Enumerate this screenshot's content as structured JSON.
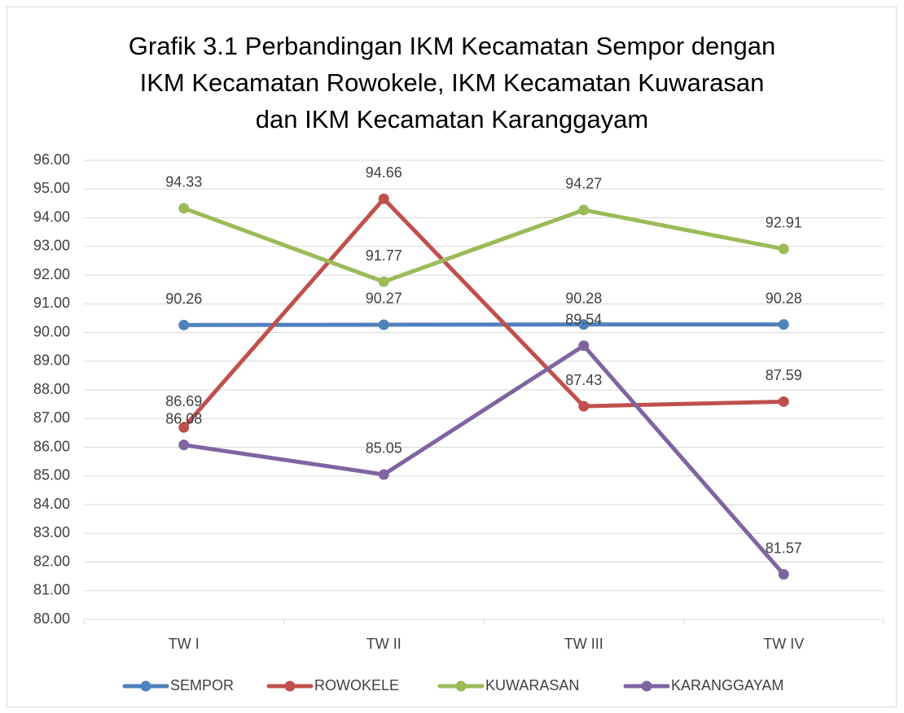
{
  "chart_data": {
    "type": "line",
    "title": "Grafik 3.1 Perbandingan IKM Kecamatan Sempor dengan IKM Kecamatan Rowokele, IKM Kecamatan Kuwarasan dan IKM Kecamatan Karanggayam",
    "categories": [
      "TW I",
      "TW II",
      "TW III",
      "TW IV"
    ],
    "series": [
      {
        "name": "SEMPOR",
        "color": "#4f81bd",
        "values": [
          90.26,
          90.27,
          90.28,
          90.28
        ]
      },
      {
        "name": "ROWOKELE",
        "color": "#c0504d",
        "values": [
          86.69,
          94.66,
          87.43,
          87.59
        ]
      },
      {
        "name": "KUWARASAN",
        "color": "#9bbb59",
        "values": [
          94.33,
          91.77,
          94.27,
          92.91
        ]
      },
      {
        "name": "KARANGGAYAM",
        "color": "#8064a2",
        "values": [
          86.08,
          85.05,
          89.54,
          81.57
        ]
      }
    ],
    "ylim": [
      80,
      96
    ],
    "yticks": [
      {
        "value": 80,
        "label": "80.00"
      },
      {
        "value": 81,
        "label": "81.00"
      },
      {
        "value": 82,
        "label": "82.00"
      },
      {
        "value": 83,
        "label": "83.00"
      },
      {
        "value": 84,
        "label": "84.00"
      },
      {
        "value": 85,
        "label": "85.00"
      },
      {
        "value": 86,
        "label": "86.00"
      },
      {
        "value": 87,
        "label": "87.00"
      },
      {
        "value": 88,
        "label": "88.00"
      },
      {
        "value": 89,
        "label": "89.00"
      },
      {
        "value": 90,
        "label": "90.00"
      },
      {
        "value": 91,
        "label": "91.00"
      },
      {
        "value": 92,
        "label": "92.00"
      },
      {
        "value": 93,
        "label": "93.00"
      },
      {
        "value": 94,
        "label": "94.00"
      },
      {
        "value": 95,
        "label": "95.00"
      },
      {
        "value": 96,
        "label": "96.00"
      }
    ],
    "grid": true,
    "legend": "bottom"
  }
}
